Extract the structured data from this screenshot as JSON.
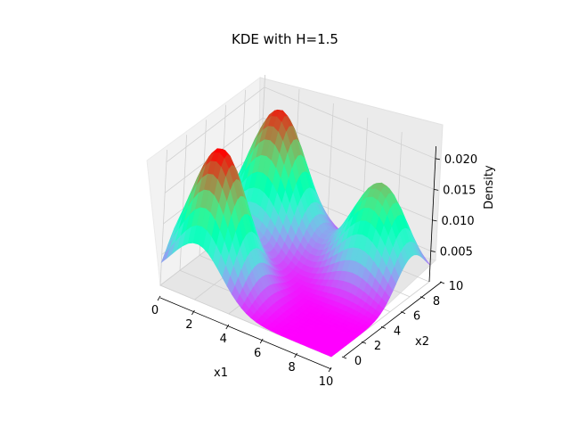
{
  "chart_data": {
    "type": "surface",
    "title": "KDE with H=1.5",
    "xlabel": "x1",
    "ylabel": "x2",
    "zlabel": "Density",
    "xlim": [
      0,
      10
    ],
    "ylim": [
      0,
      10
    ],
    "zlim": [
      0.0,
      0.022
    ],
    "xticks": [
      "0",
      "2",
      "4",
      "6",
      "8",
      "10"
    ],
    "yticks": [
      "0",
      "2",
      "4",
      "6",
      "8",
      "10"
    ],
    "zticks": [
      "0.005",
      "0.010",
      "0.015",
      "0.020"
    ],
    "colormap": "rainbow",
    "grid": true,
    "peaks": [
      {
        "x1": 2,
        "x2": 8,
        "density": 0.021
      },
      {
        "x1": 8,
        "x2": 8,
        "density": 0.016
      },
      {
        "x1": 2,
        "x2": 2,
        "density": 0.022
      }
    ]
  }
}
